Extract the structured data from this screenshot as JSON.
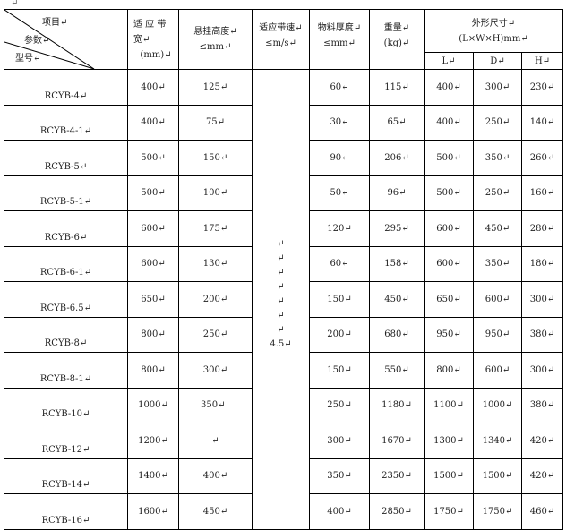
{
  "para_mark": "↵",
  "header": {
    "diag_item": "项目↵",
    "diag_param": "参数↵",
    "diag_model": "型号↵",
    "width_l1": "适 应 带",
    "width_l2": "宽↵",
    "width_l3": "(mm)↵",
    "height_l1": "悬挂高度↵",
    "height_l2": "≤mm↵",
    "speed_l1": "适应带速↵",
    "speed_l2": "≤m/s↵",
    "thick_l1": "物料厚度↵",
    "thick_l2": "≤mm↵",
    "weight_l1": "重量↵",
    "weight_l2": "(kg)↵",
    "dims_l1": "外形尺寸↵",
    "dims_l2": "(L×W×H)mm↵",
    "L": "L↵",
    "D": "D↵",
    "H": "H↵"
  },
  "speed": {
    "marks": [
      "↵",
      "↵",
      "↵",
      "↵",
      "↵",
      "↵",
      "↵"
    ],
    "value": "4.5↵"
  },
  "rows": [
    [
      "RCYB-4↵",
      "400↵",
      "125↵",
      "60↵",
      "115↵",
      "400↵",
      "300↵",
      "230↵"
    ],
    [
      "RCYB-4-1↵",
      "400↵",
      "75↵",
      "30↵",
      "65↵",
      "400↵",
      "250↵",
      "140↵"
    ],
    [
      "RCYB-5↵",
      "500↵",
      "150↵",
      "90↵",
      "206↵",
      "500↵",
      "350↵",
      "260↵"
    ],
    [
      "RCYB-5-1↵",
      "500↵",
      "100↵",
      "50↵",
      "96↵",
      "500↵",
      "250↵",
      "160↵"
    ],
    [
      "RCYB-6↵",
      "600↵",
      "175↵",
      "120↵",
      "295↵",
      "600↵",
      "450↵",
      "280↵"
    ],
    [
      "RCYB-6-1↵",
      "600↵",
      "130↵",
      "60↵",
      "158↵",
      "600↵",
      "350↵",
      "180↵"
    ],
    [
      "RCYB-6.5↵",
      "650↵",
      "200↵",
      "150↵",
      "450↵",
      "650↵",
      "600↵",
      "300↵"
    ],
    [
      "RCYB-8↵",
      "800↵",
      "250↵",
      "200↵",
      "680↵",
      "950↵",
      "950↵",
      "380↵"
    ],
    [
      "RCYB-8-1↵",
      "800↵",
      "300↵",
      "150↵",
      "550↵",
      "800↵",
      "600↵",
      "300↵"
    ],
    [
      "RCYB-10↵",
      "1000↵",
      "350↵",
      "250↵",
      "1180↵",
      "1100↵",
      "1000↵",
      "380↵"
    ],
    [
      "RCYB-12↵",
      "1200↵",
      "↵",
      "300↵",
      "1670↵",
      "1300↵",
      "1340↵",
      "420↵"
    ],
    [
      "RCYB-14↵",
      "1400↵",
      "400↵",
      "350↵",
      "2350↵",
      "1500↵",
      "1500↵",
      "420↵"
    ],
    [
      "RCYB-16↵",
      "1600↵",
      "450↵",
      "400↵",
      "2850↵",
      "1750↵",
      "1750↵",
      "460↵"
    ]
  ]
}
